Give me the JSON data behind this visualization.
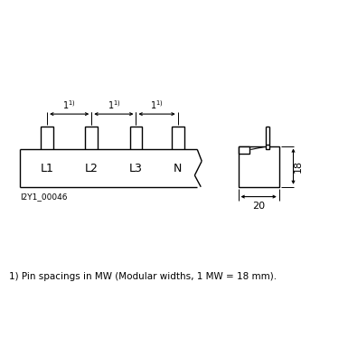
{
  "bg_color": "#ffffff",
  "line_color": "#000000",
  "fig_width": 3.85,
  "fig_height": 3.85,
  "dpi": 100,
  "footnote": "1) Pin spacings in MW (Modular widths, 1 MW = 18 mm).",
  "image_code": "I2Y1_00046",
  "phase_labels": [
    "L1",
    "L2",
    "L3",
    "N"
  ],
  "dim_label_18": "18",
  "dim_label_20": "20"
}
